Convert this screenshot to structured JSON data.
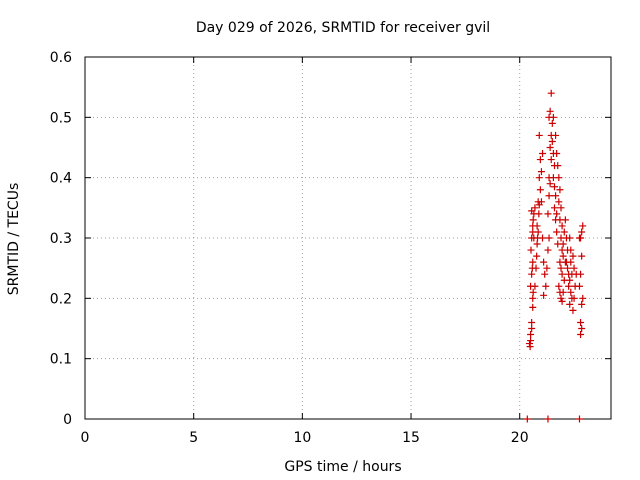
{
  "chart_data": {
    "type": "scatter",
    "title": "Day 029 of 2026, SRMTID for receiver gvil",
    "xlabel": "GPS time / hours",
    "ylabel": "SRMTID / TECUs",
    "xlim": [
      0,
      24.2
    ],
    "ylim": [
      0,
      0.6
    ],
    "xticks": [
      0,
      5,
      10,
      15,
      20
    ],
    "yticks": [
      0,
      0.1,
      0.2,
      0.3,
      0.4,
      0.5,
      0.6
    ],
    "ytick_labels": [
      "0",
      "0.1",
      "0.2",
      "0.3",
      "0.4",
      "0.5",
      "0.6"
    ],
    "grid": true,
    "marker": "+",
    "color": "#cc0000",
    "series": [
      {
        "name": "SRMTID",
        "points": [
          [
            20.35,
            0.0
          ],
          [
            21.3,
            0.0
          ],
          [
            22.75,
            0.0
          ],
          [
            20.45,
            0.125
          ],
          [
            20.48,
            0.12
          ],
          [
            20.5,
            0.13
          ],
          [
            20.5,
            0.14
          ],
          [
            20.55,
            0.15
          ],
          [
            20.55,
            0.16
          ],
          [
            20.6,
            0.185
          ],
          [
            20.6,
            0.2
          ],
          [
            20.62,
            0.21
          ],
          [
            20.5,
            0.22
          ],
          [
            20.55,
            0.24
          ],
          [
            20.58,
            0.25
          ],
          [
            20.6,
            0.26
          ],
          [
            20.52,
            0.28
          ],
          [
            20.55,
            0.3
          ],
          [
            20.6,
            0.31
          ],
          [
            20.62,
            0.33
          ],
          [
            20.65,
            0.34
          ],
          [
            20.55,
            0.345
          ],
          [
            20.7,
            0.35
          ],
          [
            20.6,
            0.32
          ],
          [
            20.65,
            0.3
          ],
          [
            20.7,
            0.22
          ],
          [
            20.75,
            0.25
          ],
          [
            20.78,
            0.27
          ],
          [
            20.8,
            0.29
          ],
          [
            20.82,
            0.3
          ],
          [
            20.85,
            0.31
          ],
          [
            20.8,
            0.32
          ],
          [
            20.88,
            0.34
          ],
          [
            20.9,
            0.355
          ],
          [
            20.85,
            0.36
          ],
          [
            20.95,
            0.38
          ],
          [
            20.9,
            0.4
          ],
          [
            21.0,
            0.41
          ],
          [
            20.95,
            0.43
          ],
          [
            21.05,
            0.44
          ],
          [
            20.9,
            0.47
          ],
          [
            21.0,
            0.36
          ],
          [
            21.05,
            0.3
          ],
          [
            21.1,
            0.26
          ],
          [
            21.15,
            0.24
          ],
          [
            21.2,
            0.22
          ],
          [
            21.1,
            0.205
          ],
          [
            21.25,
            0.25
          ],
          [
            21.3,
            0.28
          ],
          [
            21.35,
            0.3
          ],
          [
            21.3,
            0.34
          ],
          [
            21.35,
            0.37
          ],
          [
            21.4,
            0.39
          ],
          [
            21.35,
            0.4
          ],
          [
            21.45,
            0.43
          ],
          [
            21.4,
            0.45
          ],
          [
            21.45,
            0.47
          ],
          [
            21.35,
            0.5
          ],
          [
            21.4,
            0.51
          ],
          [
            21.45,
            0.54
          ],
          [
            21.5,
            0.49
          ],
          [
            21.5,
            0.46
          ],
          [
            21.55,
            0.44
          ],
          [
            21.6,
            0.42
          ],
          [
            21.55,
            0.4
          ],
          [
            21.6,
            0.385
          ],
          [
            21.65,
            0.37
          ],
          [
            21.6,
            0.35
          ],
          [
            21.7,
            0.34
          ],
          [
            21.65,
            0.33
          ],
          [
            21.7,
            0.31
          ],
          [
            21.75,
            0.29
          ],
          [
            21.55,
            0.5
          ],
          [
            21.65,
            0.47
          ],
          [
            21.7,
            0.44
          ],
          [
            21.75,
            0.42
          ],
          [
            21.8,
            0.4
          ],
          [
            21.85,
            0.38
          ],
          [
            21.8,
            0.36
          ],
          [
            21.9,
            0.35
          ],
          [
            21.85,
            0.33
          ],
          [
            21.95,
            0.32
          ],
          [
            21.9,
            0.3
          ],
          [
            21.95,
            0.28
          ],
          [
            22.0,
            0.27
          ],
          [
            21.85,
            0.26
          ],
          [
            21.9,
            0.25
          ],
          [
            21.95,
            0.24
          ],
          [
            21.8,
            0.22
          ],
          [
            21.85,
            0.21
          ],
          [
            21.9,
            0.2
          ],
          [
            21.95,
            0.195
          ],
          [
            22.0,
            0.21
          ],
          [
            22.05,
            0.23
          ],
          [
            22.1,
            0.26
          ],
          [
            22.0,
            0.29
          ],
          [
            22.05,
            0.31
          ],
          [
            22.1,
            0.33
          ],
          [
            22.15,
            0.3
          ],
          [
            22.2,
            0.28
          ],
          [
            22.15,
            0.26
          ],
          [
            22.2,
            0.25
          ],
          [
            22.25,
            0.24
          ],
          [
            22.3,
            0.23
          ],
          [
            22.25,
            0.22
          ],
          [
            22.35,
            0.21
          ],
          [
            22.4,
            0.2
          ],
          [
            22.3,
            0.19
          ],
          [
            22.45,
            0.18
          ],
          [
            22.5,
            0.2
          ],
          [
            22.4,
            0.24
          ],
          [
            22.35,
            0.26
          ],
          [
            22.45,
            0.27
          ],
          [
            22.5,
            0.25
          ],
          [
            22.55,
            0.22
          ],
          [
            22.6,
            0.24
          ],
          [
            22.3,
            0.3
          ],
          [
            22.35,
            0.28
          ],
          [
            22.8,
            0.14
          ],
          [
            22.85,
            0.15
          ],
          [
            22.8,
            0.16
          ],
          [
            22.85,
            0.19
          ],
          [
            22.9,
            0.2
          ],
          [
            22.75,
            0.22
          ],
          [
            22.8,
            0.24
          ],
          [
            22.85,
            0.27
          ],
          [
            22.8,
            0.3
          ],
          [
            22.85,
            0.31
          ],
          [
            22.9,
            0.32
          ],
          [
            22.75,
            0.3
          ]
        ]
      }
    ]
  }
}
